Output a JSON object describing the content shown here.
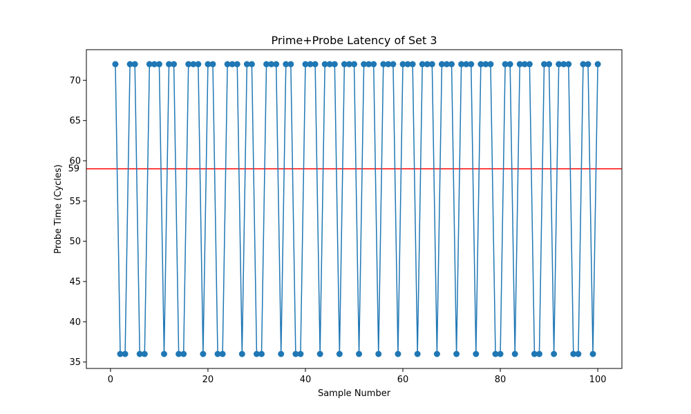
{
  "chart_data": {
    "type": "line",
    "title": "Prime+Probe Latency of Set 3",
    "xlabel": "Sample Number",
    "ylabel": "Probe Time (Cycles)",
    "xlim": [
      -4.95,
      104.95
    ],
    "ylim": [
      34.2,
      73.8
    ],
    "x_ticks": [
      0,
      20,
      40,
      60,
      80,
      100
    ],
    "y_ticks": [
      35,
      40,
      45,
      50,
      55,
      60,
      65,
      70
    ],
    "grid": false,
    "series": [
      {
        "color": "#1f77b4",
        "marker": "circle",
        "x": [
          1,
          2,
          3,
          4,
          5,
          6,
          7,
          8,
          9,
          10,
          11,
          12,
          13,
          14,
          15,
          16,
          17,
          18,
          19,
          20,
          21,
          22,
          23,
          24,
          25,
          26,
          27,
          28,
          29,
          30,
          31,
          32,
          33,
          34,
          35,
          36,
          37,
          38,
          39,
          40,
          41,
          42,
          43,
          44,
          45,
          46,
          47,
          48,
          49,
          50,
          51,
          52,
          53,
          54,
          55,
          56,
          57,
          58,
          59,
          60,
          61,
          62,
          63,
          64,
          65,
          66,
          67,
          68,
          69,
          70,
          71,
          72,
          73,
          74,
          75,
          76,
          77,
          78,
          79,
          80,
          81,
          82,
          83,
          84,
          85,
          86,
          87,
          88,
          89,
          90,
          91,
          92,
          93,
          94,
          95,
          96,
          97,
          98,
          99,
          100
        ],
        "values": [
          72,
          36,
          36,
          72,
          72,
          36,
          36,
          72,
          72,
          72,
          36,
          72,
          72,
          36,
          36,
          72,
          72,
          72,
          36,
          72,
          72,
          36,
          36,
          72,
          72,
          72,
          36,
          72,
          72,
          36,
          36,
          72,
          72,
          72,
          36,
          72,
          72,
          36,
          36,
          72,
          72,
          72,
          36,
          72,
          72,
          72,
          36,
          72,
          72,
          72,
          36,
          72,
          72,
          72,
          36,
          72,
          72,
          72,
          36,
          72,
          72,
          72,
          36,
          72,
          72,
          72,
          36,
          72,
          72,
          72,
          36,
          72,
          72,
          72,
          36,
          72,
          72,
          72,
          36,
          36,
          72,
          72,
          36,
          72,
          72,
          72,
          36,
          36,
          72,
          72,
          36,
          72,
          72,
          72,
          36,
          36,
          72,
          72,
          36,
          72
        ]
      }
    ],
    "threshold": {
      "value": 59,
      "label": "59",
      "color": "#ff0000"
    }
  }
}
